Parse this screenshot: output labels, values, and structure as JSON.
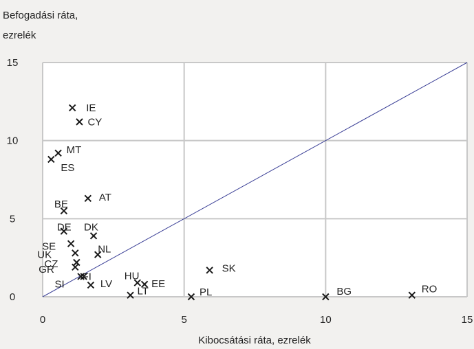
{
  "chart_data": {
    "type": "scatter",
    "ylabel_line1": "Befogadási ráta,",
    "ylabel_line2": "ezrelék",
    "xlabel": "Kibocsátási ráta, ezrelék",
    "xlim": [
      0,
      15
    ],
    "ylim": [
      0,
      15
    ],
    "xticks": [
      "0",
      "5",
      "10",
      "15"
    ],
    "yticks": [
      "0",
      "5",
      "10",
      "15"
    ],
    "grid": true,
    "reference_line": "y = x",
    "colors": {
      "background": "#f2f1ef",
      "plot_area": "#ffffff",
      "grid": "#c8c8c8",
      "diagonal": "#3a3f96",
      "marker": "#1a1a1a"
    },
    "points": [
      {
        "label": "IE",
        "x": 1.05,
        "y": 12.1
      },
      {
        "label": "CY",
        "x": 1.3,
        "y": 11.2
      },
      {
        "label": "MT",
        "x": 0.55,
        "y": 9.2
      },
      {
        "label": "ES",
        "x": 0.3,
        "y": 8.8
      },
      {
        "label": "AT",
        "x": 1.6,
        "y": 6.3
      },
      {
        "label": "BE",
        "x": 0.75,
        "y": 5.5
      },
      {
        "label": "DE",
        "x": 0.75,
        "y": 4.2
      },
      {
        "label": "DK",
        "x": 1.8,
        "y": 3.9
      },
      {
        "label": "SE",
        "x": 1.0,
        "y": 3.4
      },
      {
        "label": "NL",
        "x": 1.95,
        "y": 2.7
      },
      {
        "label": "UK",
        "x": 1.15,
        "y": 2.8
      },
      {
        "label": "CZ",
        "x": 1.2,
        "y": 2.2
      },
      {
        "label": "GR",
        "x": 1.15,
        "y": 1.9
      },
      {
        "label": "SI",
        "x": 1.35,
        "y": 1.3
      },
      {
        "label": "FI",
        "x": 1.45,
        "y": 1.3
      },
      {
        "label": "LV",
        "x": 1.7,
        "y": 0.75
      },
      {
        "label": "HU",
        "x": 3.35,
        "y": 0.9
      },
      {
        "label": "EE",
        "x": 3.6,
        "y": 0.8
      },
      {
        "label": "LT",
        "x": 3.1,
        "y": 0.1
      },
      {
        "label": "SK",
        "x": 5.9,
        "y": 1.7
      },
      {
        "label": "PL",
        "x": 5.25,
        "y": 0.0
      },
      {
        "label": "BG",
        "x": 10.0,
        "y": 0.0
      },
      {
        "label": "RO",
        "x": 13.05,
        "y": 0.1
      }
    ]
  }
}
